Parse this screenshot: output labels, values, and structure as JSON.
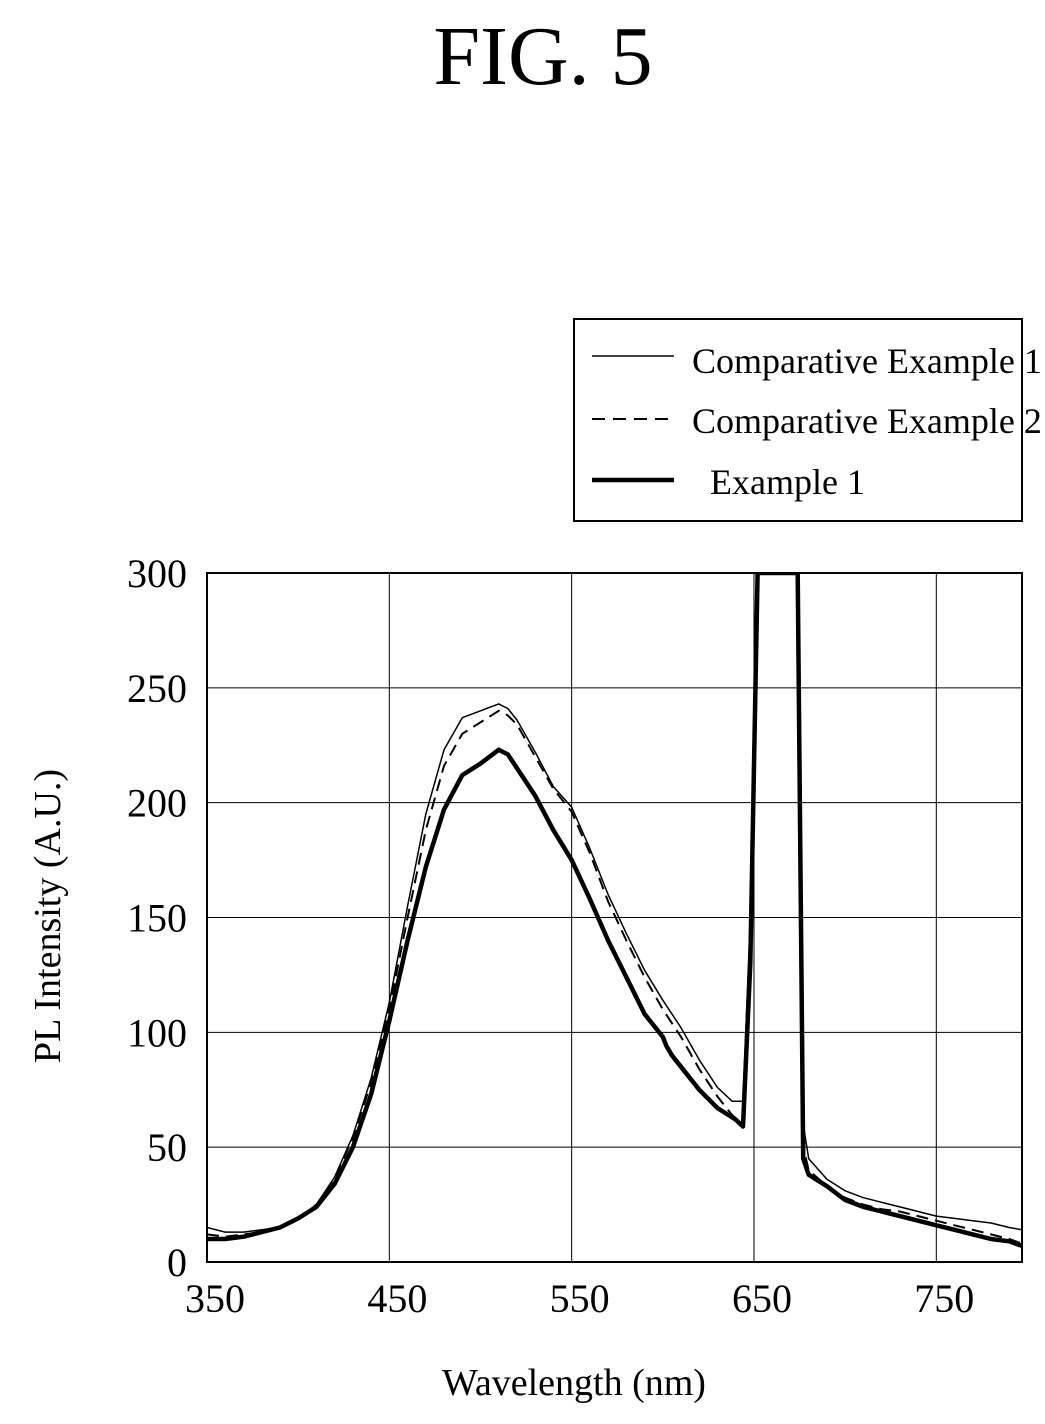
{
  "figure": {
    "title": "FIG. 5"
  },
  "chart_data": {
    "type": "line",
    "title": "FIG. 5",
    "xlabel": "Wavelength (nm)",
    "ylabel": "PL Intensity (A.U.)",
    "xlim": [
      350,
      797
    ],
    "ylim": [
      0,
      300
    ],
    "xticks": [
      350,
      450,
      550,
      650,
      750
    ],
    "yticks": [
      0,
      50,
      100,
      150,
      200,
      250,
      300
    ],
    "xtick_labels": [
      "350",
      "450",
      "550",
      "650",
      "750"
    ],
    "ytick_labels": [
      "0",
      "50",
      "100",
      "150",
      "200",
      "250",
      "300"
    ],
    "grid": true,
    "legend_position": "top-right, above plot",
    "series": [
      {
        "name": "Comparative Example 1",
        "style": "thin-solid",
        "x": [
          350,
          360,
          370,
          380,
          390,
          400,
          410,
          420,
          430,
          440,
          450,
          460,
          470,
          480,
          490,
          500,
          510,
          515,
          520,
          530,
          540,
          550,
          560,
          570,
          580,
          590,
          600,
          610,
          620,
          630,
          638,
          644,
          648,
          652,
          674,
          677,
          680,
          690,
          700,
          710,
          720,
          730,
          740,
          750,
          760,
          770,
          780,
          790,
          797
        ],
        "y": [
          15,
          13,
          13,
          14,
          15,
          19,
          25,
          37,
          55,
          80,
          113,
          155,
          195,
          223,
          237,
          240,
          243,
          241,
          236,
          222,
          207,
          198,
          180,
          160,
          143,
          127,
          114,
          102,
          88,
          76,
          70,
          70,
          150,
          300,
          300,
          60,
          45,
          36,
          31,
          28,
          26,
          24,
          22,
          20,
          19,
          18,
          17,
          15,
          14
        ]
      },
      {
        "name": "Comparative Example 2",
        "style": "dashed",
        "x": [
          350,
          360,
          370,
          380,
          390,
          400,
          410,
          420,
          430,
          440,
          450,
          460,
          470,
          480,
          490,
          500,
          510,
          515,
          520,
          530,
          540,
          550,
          560,
          570,
          580,
          590,
          600,
          610,
          620,
          630,
          638,
          644,
          648,
          652,
          674,
          677,
          680,
          690,
          700,
          710,
          720,
          730,
          740,
          750,
          760,
          770,
          780,
          790,
          797
        ],
        "y": [
          12,
          11,
          12,
          13,
          15,
          19,
          25,
          36,
          54,
          78,
          110,
          150,
          188,
          216,
          230,
          235,
          240,
          238,
          234,
          220,
          206,
          196,
          178,
          157,
          140,
          124,
          110,
          98,
          84,
          72,
          64,
          60,
          140,
          300,
          300,
          50,
          40,
          33,
          28,
          25,
          23,
          22,
          20,
          18,
          16,
          14,
          12,
          10,
          8
        ]
      },
      {
        "name": "Example 1",
        "style": "thick-solid",
        "x": [
          350,
          360,
          370,
          380,
          390,
          400,
          410,
          420,
          430,
          440,
          450,
          460,
          470,
          480,
          490,
          500,
          510,
          515,
          520,
          530,
          540,
          550,
          560,
          570,
          580,
          590,
          600,
          602,
          605,
          610,
          620,
          630,
          640,
          644,
          648,
          652,
          674,
          677,
          680,
          690,
          700,
          710,
          720,
          730,
          740,
          750,
          760,
          770,
          780,
          790,
          797
        ],
        "y": [
          10,
          10,
          11,
          13,
          15,
          19,
          24,
          34,
          50,
          73,
          105,
          140,
          172,
          197,
          212,
          217,
          223,
          221,
          215,
          203,
          188,
          175,
          158,
          140,
          124,
          108,
          98,
          94,
          90,
          85,
          75,
          67,
          62,
          59,
          130,
          300,
          300,
          45,
          38,
          33,
          27,
          24,
          22,
          20,
          18,
          16,
          14,
          12,
          10,
          9,
          7
        ]
      }
    ]
  }
}
